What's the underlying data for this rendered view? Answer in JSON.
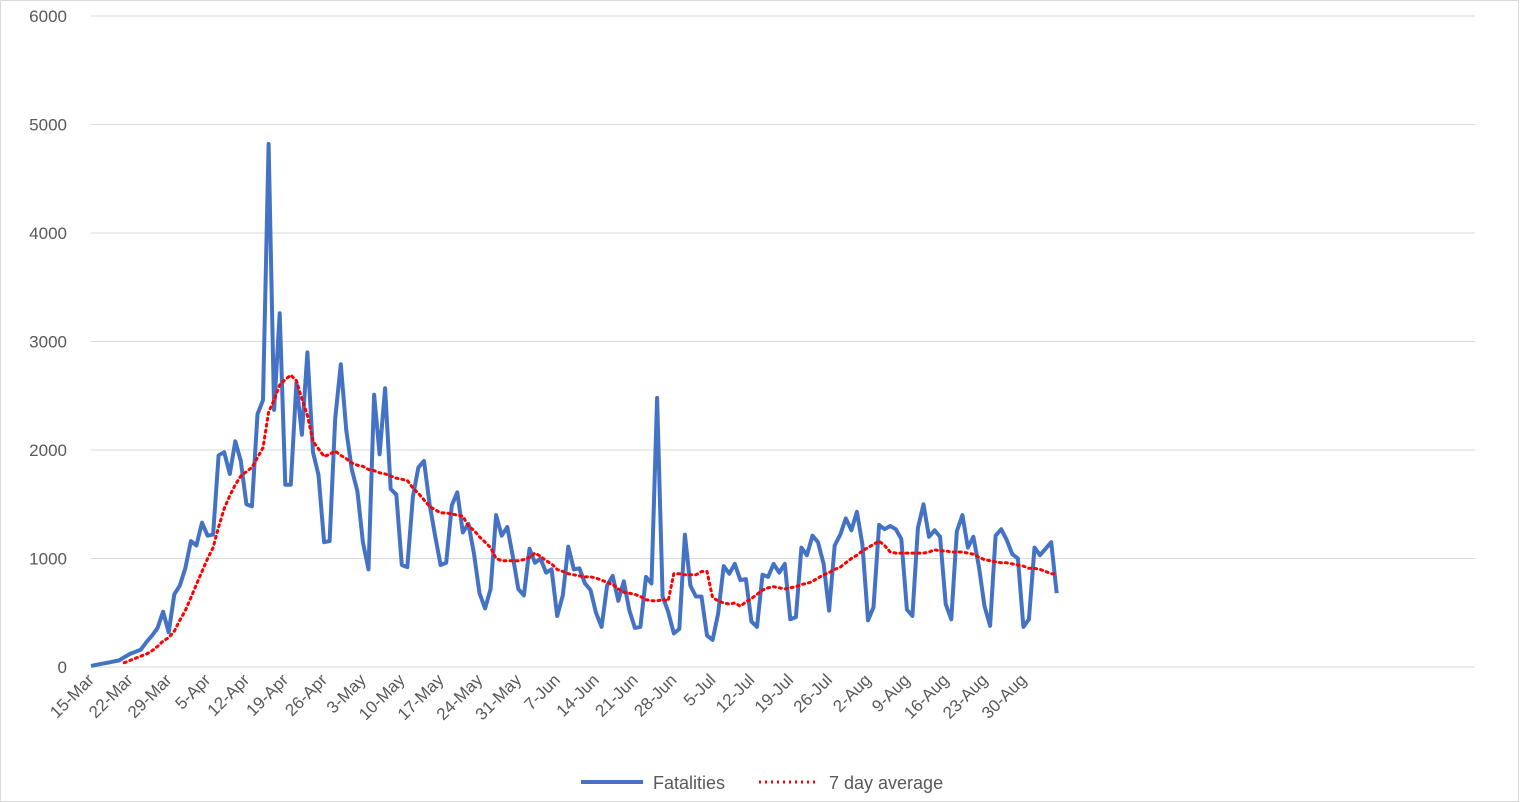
{
  "chart_data": {
    "type": "line",
    "title": "",
    "xlabel": "",
    "ylabel": "",
    "ylim": [
      0,
      6000
    ],
    "yticks": [
      0,
      1000,
      2000,
      3000,
      4000,
      5000,
      6000
    ],
    "grid": true,
    "legend_position": "bottom",
    "x_start_label": "15-Mar",
    "xtick_labels": [
      "15-Mar",
      "22-Mar",
      "29-Mar",
      "5-Apr",
      "12-Apr",
      "19-Apr",
      "26-Apr",
      "3-May",
      "10-May",
      "17-May",
      "24-May",
      "31-May",
      "7-Jun",
      "14-Jun",
      "21-Jun",
      "28-Jun",
      "5-Jul",
      "12-Jul",
      "19-Jul",
      "26-Jul",
      "2-Aug",
      "9-Aug",
      "16-Aug",
      "23-Aug",
      "30-Aug"
    ],
    "series": [
      {
        "name": "Fatalities",
        "color": "#4472C4",
        "style": "solid",
        "x_labels": [
          "15-Mar",
          "16-Mar",
          "17-Mar",
          "18-Mar",
          "19-Mar",
          "20-Mar",
          "21-Mar",
          "22-Mar",
          "23-Mar",
          "24-Mar",
          "25-Mar",
          "26-Mar",
          "27-Mar",
          "28-Mar",
          "29-Mar",
          "30-Mar",
          "31-Mar",
          "1-Apr",
          "2-Apr",
          "3-Apr",
          "4-Apr",
          "5-Apr",
          "6-Apr",
          "7-Apr",
          "8-Apr",
          "9-Apr",
          "10-Apr",
          "11-Apr",
          "12-Apr",
          "13-Apr",
          "14-Apr",
          "15-Apr",
          "16-Apr",
          "17-Apr",
          "18-Apr",
          "19-Apr",
          "20-Apr",
          "21-Apr",
          "22-Apr",
          "23-Apr",
          "24-Apr",
          "25-Apr",
          "26-Apr",
          "27-Apr",
          "28-Apr",
          "29-Apr",
          "30-Apr",
          "1-May",
          "2-May",
          "3-May",
          "4-May",
          "5-May",
          "6-May",
          "7-May",
          "8-May",
          "9-May",
          "10-May",
          "11-May",
          "12-May",
          "13-May",
          "14-May",
          "15-May",
          "16-May",
          "17-May",
          "18-May",
          "19-May",
          "20-May",
          "21-May",
          "22-May",
          "23-May",
          "24-May",
          "25-May",
          "26-May",
          "27-May",
          "28-May",
          "29-May",
          "30-May",
          "31-May",
          "1-Jun",
          "2-Jun",
          "3-Jun",
          "4-Jun",
          "5-Jun",
          "6-Jun",
          "7-Jun",
          "8-Jun",
          "9-Jun",
          "10-Jun",
          "11-Jun",
          "12-Jun",
          "13-Jun",
          "14-Jun",
          "15-Jun",
          "16-Jun",
          "17-Jun",
          "18-Jun",
          "19-Jun",
          "20-Jun",
          "21-Jun",
          "22-Jun",
          "23-Jun",
          "24-Jun",
          "25-Jun",
          "26-Jun",
          "27-Jun",
          "28-Jun",
          "29-Jun",
          "30-Jun",
          "1-Jul",
          "2-Jul",
          "3-Jul",
          "4-Jul",
          "5-Jul",
          "6-Jul",
          "7-Jul",
          "8-Jul",
          "9-Jul",
          "10-Jul",
          "11-Jul",
          "12-Jul",
          "13-Jul",
          "14-Jul",
          "15-Jul",
          "16-Jul",
          "17-Jul",
          "18-Jul",
          "19-Jul",
          "20-Jul",
          "21-Jul",
          "22-Jul",
          "23-Jul",
          "24-Jul",
          "25-Jul",
          "26-Jul",
          "27-Jul",
          "28-Jul",
          "29-Jul",
          "30-Jul",
          "31-Jul",
          "1-Aug",
          "2-Aug",
          "3-Aug",
          "4-Aug",
          "5-Aug",
          "6-Aug",
          "7-Aug",
          "8-Aug",
          "9-Aug",
          "10-Aug",
          "11-Aug",
          "12-Aug",
          "13-Aug",
          "14-Aug",
          "15-Aug",
          "16-Aug",
          "17-Aug",
          "18-Aug",
          "19-Aug",
          "20-Aug",
          "21-Aug",
          "22-Aug",
          "23-Aug",
          "24-Aug",
          "25-Aug",
          "26-Aug",
          "27-Aug",
          "28-Aug",
          "29-Aug",
          "30-Aug",
          "31-Aug",
          "1-Sep",
          "2-Sep",
          "3-Sep",
          "4-Sep",
          "5-Sep"
        ],
        "values": [
          10,
          20,
          30,
          40,
          50,
          60,
          90,
          120,
          140,
          160,
          230,
          290,
          360,
          510,
          320,
          670,
          750,
          910,
          1160,
          1120,
          1330,
          1210,
          1220,
          1950,
          1980,
          1780,
          2080,
          1900,
          1500,
          1480,
          2330,
          2460,
          4820,
          2370,
          3260,
          1680,
          1680,
          2620,
          2140,
          2900,
          1980,
          1770,
          1150,
          1160,
          2290,
          2790,
          2180,
          1820,
          1620,
          1150,
          900,
          2510,
          1960,
          2570,
          1640,
          1590,
          940,
          920,
          1570,
          1840,
          1900,
          1500,
          1210,
          940,
          960,
          1490,
          1610,
          1240,
          1320,
          1050,
          680,
          540,
          720,
          1400,
          1210,
          1290,
          1020,
          720,
          660,
          1090,
          960,
          1000,
          870,
          900,
          470,
          660,
          1110,
          900,
          910,
          770,
          710,
          500,
          370,
          750,
          840,
          610,
          790,
          520,
          360,
          370,
          830,
          770,
          2480,
          650,
          510,
          310,
          350,
          1220,
          750,
          650,
          650,
          290,
          250,
          490,
          930,
          860,
          950,
          800,
          810,
          420,
          370,
          850,
          830,
          950,
          870,
          950,
          440,
          460,
          1100,
          1030,
          1210,
          1150,
          950,
          520,
          1120,
          1220,
          1370,
          1260,
          1430,
          1130,
          430,
          550,
          1310,
          1270,
          1300,
          1270,
          1180,
          530,
          470,
          1280,
          1500,
          1200,
          1260,
          1200,
          580,
          440,
          1250,
          1400,
          1100,
          1200,
          920,
          560,
          380,
          1210,
          1270,
          1170,
          1040,
          1000,
          370,
          440,
          1100,
          1030,
          1090,
          1150,
          680
        ]
      },
      {
        "name": "7 day average",
        "color": "#FF0000",
        "style": "dotted",
        "x_labels": [
          "21-Mar",
          "22-Mar",
          "23-Mar",
          "24-Mar",
          "25-Mar",
          "26-Mar",
          "27-Mar",
          "28-Mar",
          "29-Mar",
          "30-Mar",
          "31-Mar",
          "1-Apr",
          "2-Apr",
          "3-Apr",
          "4-Apr",
          "5-Apr",
          "6-Apr",
          "7-Apr",
          "8-Apr",
          "9-Apr",
          "10-Apr",
          "11-Apr",
          "12-Apr",
          "13-Apr",
          "14-Apr",
          "15-Apr",
          "16-Apr",
          "17-Apr",
          "18-Apr",
          "19-Apr",
          "20-Apr",
          "21-Apr",
          "22-Apr",
          "23-Apr",
          "24-Apr",
          "25-Apr",
          "26-Apr",
          "27-Apr",
          "28-Apr",
          "29-Apr",
          "30-Apr",
          "1-May",
          "2-May",
          "3-May",
          "4-May",
          "5-May",
          "6-May",
          "7-May",
          "8-May",
          "9-May",
          "10-May",
          "11-May",
          "12-May",
          "13-May",
          "14-May",
          "15-May",
          "16-May",
          "17-May",
          "18-May",
          "19-May",
          "20-May",
          "21-May",
          "22-May",
          "23-May",
          "24-May",
          "25-May",
          "26-May",
          "27-May",
          "28-May",
          "29-May",
          "30-May",
          "31-May",
          "1-Jun",
          "2-Jun",
          "3-Jun",
          "4-Jun",
          "5-Jun",
          "6-Jun",
          "7-Jun",
          "8-Jun",
          "9-Jun",
          "10-Jun",
          "11-Jun",
          "12-Jun",
          "13-Jun",
          "14-Jun",
          "15-Jun",
          "16-Jun",
          "17-Jun",
          "18-Jun",
          "19-Jun",
          "20-Jun",
          "21-Jun",
          "22-Jun",
          "23-Jun",
          "24-Jun",
          "25-Jun",
          "26-Jun",
          "27-Jun",
          "28-Jun",
          "29-Jun",
          "30-Jun",
          "1-Jul",
          "2-Jul",
          "3-Jul",
          "4-Jul",
          "5-Jul",
          "6-Jul",
          "7-Jul",
          "8-Jul",
          "9-Jul",
          "10-Jul",
          "11-Jul",
          "12-Jul",
          "13-Jul",
          "14-Jul",
          "15-Jul",
          "16-Jul",
          "17-Jul",
          "18-Jul",
          "19-Jul",
          "20-Jul",
          "21-Jul",
          "22-Jul",
          "23-Jul",
          "24-Jul",
          "25-Jul",
          "26-Jul",
          "27-Jul",
          "28-Jul",
          "29-Jul",
          "30-Jul",
          "31-Jul",
          "1-Aug",
          "2-Aug",
          "3-Aug",
          "4-Aug",
          "5-Aug",
          "6-Aug",
          "7-Aug",
          "8-Aug",
          "9-Aug",
          "10-Aug",
          "11-Aug",
          "12-Aug",
          "13-Aug",
          "14-Aug",
          "15-Aug",
          "16-Aug",
          "17-Aug",
          "18-Aug",
          "19-Aug",
          "20-Aug",
          "21-Aug",
          "22-Aug",
          "23-Aug",
          "24-Aug",
          "25-Aug",
          "26-Aug",
          "27-Aug",
          "28-Aug",
          "29-Aug",
          "30-Aug",
          "31-Aug",
          "1-Sep",
          "2-Sep",
          "3-Sep",
          "4-Sep",
          "5-Sep"
        ],
        "values": [
          40,
          60,
          80,
          100,
          120,
          150,
          190,
          240,
          270,
          330,
          430,
          520,
          640,
          760,
          880,
          1000,
          1100,
          1290,
          1460,
          1580,
          1680,
          1760,
          1800,
          1840,
          1930,
          2020,
          2350,
          2460,
          2600,
          2650,
          2690,
          2640,
          2470,
          2320,
          2080,
          2010,
          1940,
          1960,
          1990,
          1950,
          1920,
          1880,
          1860,
          1850,
          1820,
          1810,
          1790,
          1780,
          1760,
          1740,
          1730,
          1720,
          1650,
          1600,
          1540,
          1480,
          1450,
          1420,
          1420,
          1410,
          1400,
          1390,
          1300,
          1260,
          1200,
          1150,
          1100,
          1000,
          980,
          980,
          980,
          980,
          990,
          1010,
          1050,
          1020,
          980,
          950,
          900,
          880,
          860,
          850,
          840,
          830,
          830,
          820,
          800,
          780,
          760,
          720,
          690,
          680,
          670,
          650,
          620,
          610,
          610,
          620,
          610,
          860,
          860,
          850,
          850,
          850,
          880,
          880,
          640,
          610,
          590,
          580,
          590,
          560,
          600,
          630,
          670,
          710,
          730,
          740,
          730,
          720,
          730,
          740,
          760,
          770,
          790,
          820,
          850,
          870,
          900,
          920,
          960,
          1000,
          1030,
          1070,
          1100,
          1130,
          1160,
          1120,
          1060,
          1050,
          1050,
          1050,
          1050,
          1050,
          1050,
          1060,
          1080,
          1070,
          1070,
          1060,
          1060,
          1060,
          1050,
          1040,
          1010,
          990,
          980,
          970,
          960,
          960,
          950,
          940,
          930,
          910,
          910,
          900,
          880,
          860,
          860,
          850
        ]
      }
    ]
  }
}
